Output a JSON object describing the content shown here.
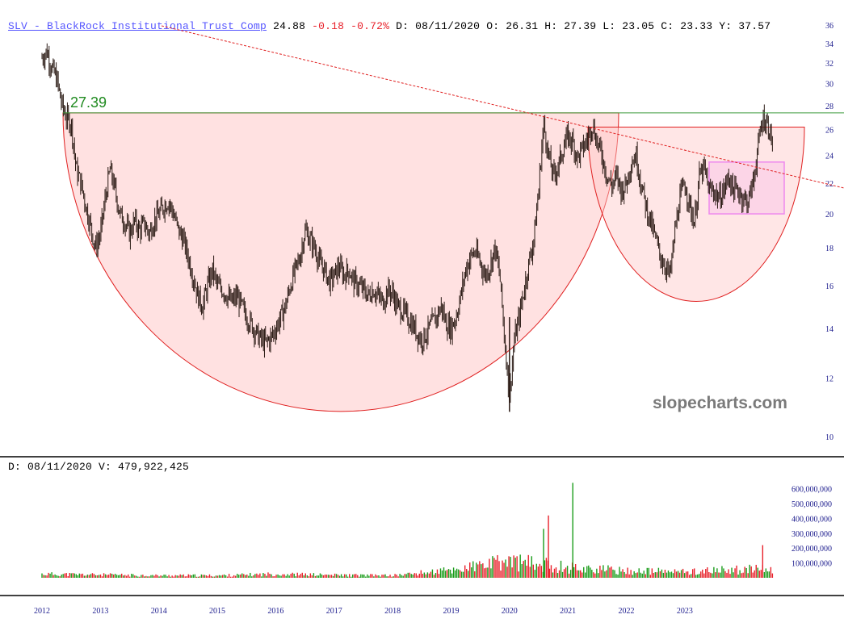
{
  "header": {
    "ticker_name": "SLV - BlackRock Institutional Trust Comp",
    "last": "24.88",
    "change": "-0.18",
    "change_pct": "-0.72%",
    "ohlc_text": "D: 08/11/2020 O: 26.31 H: 27.39 L: 23.05 C: 23.33 Y: 37.57"
  },
  "volume_header": "D: 08/11/2020 V: 479,922,425",
  "watermark": "slopecharts.com",
  "annotation": {
    "label": "27.39",
    "level": 27.39
  },
  "colors": {
    "up": "#1a9c1a",
    "down": "#e8202a",
    "candle": "#2a1a14",
    "bowl_fill": "#ffc8c8",
    "bowl_stroke": "#e02020",
    "resistance": "#3a9a3a",
    "trend": "#e02020",
    "box": "#ee88ee",
    "axis": "#1a1a8c",
    "annotation": "#1f8a1f",
    "watermark": "#7a7a7a"
  },
  "chart_data": [
    {
      "type": "line",
      "title": "SLV - BlackRock Institutional Trust Comp",
      "ylim": [
        9.5,
        37
      ],
      "yscale": "log",
      "yticks": [
        10,
        12,
        14,
        16,
        18,
        20,
        22,
        24,
        26,
        28,
        30,
        32,
        34,
        36
      ],
      "xticks": [
        "2012",
        "2013",
        "2014",
        "2015",
        "2016",
        "2017",
        "2018",
        "2019",
        "2020",
        "2021",
        "2022",
        "2023"
      ],
      "series": [
        {
          "values": [
            [
              "2012-01",
              32.5
            ],
            [
              "2012-02",
              33.2
            ],
            [
              "2012-03",
              31.5
            ],
            [
              "2012-04",
              30.5
            ],
            [
              "2012-05",
              28.2
            ],
            [
              "2012-06",
              27.0
            ],
            [
              "2012-07",
              26.5
            ],
            [
              "2012-08",
              23.0
            ],
            [
              "2012-09",
              22.0
            ],
            [
              "2012-10",
              20.5
            ],
            [
              "2012-11",
              19.2
            ],
            [
              "2012-12",
              18.0
            ],
            [
              "2013-01",
              18.8
            ],
            [
              "2013-02",
              21.0
            ],
            [
              "2013-03",
              23.0
            ],
            [
              "2013-04",
              21.5
            ],
            [
              "2013-05",
              20.0
            ],
            [
              "2013-06",
              19.5
            ],
            [
              "2013-07",
              18.8
            ],
            [
              "2013-08",
              19.6
            ],
            [
              "2013-09",
              19.0
            ],
            [
              "2013-10",
              19.4
            ],
            [
              "2013-11",
              18.8
            ],
            [
              "2013-12",
              19.6
            ],
            [
              "2014-01",
              20.0
            ],
            [
              "2014-02",
              20.5
            ],
            [
              "2014-03",
              20.8
            ],
            [
              "2014-04",
              20.0
            ],
            [
              "2014-05",
              19.0
            ],
            [
              "2014-06",
              18.5
            ],
            [
              "2014-07",
              17.5
            ],
            [
              "2014-08",
              16.5
            ],
            [
              "2014-09",
              15.5
            ],
            [
              "2014-10",
              15.0
            ],
            [
              "2014-11",
              16.0
            ],
            [
              "2014-12",
              16.8
            ],
            [
              "2015-01",
              16.0
            ],
            [
              "2015-02",
              15.8
            ],
            [
              "2015-03",
              15.5
            ],
            [
              "2015-04",
              15.2
            ],
            [
              "2015-05",
              15.5
            ],
            [
              "2015-06",
              15.0
            ],
            [
              "2015-07",
              14.5
            ],
            [
              "2015-08",
              14.2
            ],
            [
              "2015-09",
              13.8
            ],
            [
              "2015-10",
              13.5
            ],
            [
              "2015-11",
              13.4
            ],
            [
              "2015-12",
              13.6
            ],
            [
              "2016-01",
              14.0
            ],
            [
              "2016-02",
              14.5
            ],
            [
              "2016-03",
              15.0
            ],
            [
              "2016-04",
              16.0
            ],
            [
              "2016-05",
              16.8
            ],
            [
              "2016-06",
              17.5
            ],
            [
              "2016-07",
              19.0
            ],
            [
              "2016-08",
              18.5
            ],
            [
              "2016-09",
              18.0
            ],
            [
              "2016-10",
              17.2
            ],
            [
              "2016-11",
              16.8
            ],
            [
              "2016-12",
              16.2
            ],
            [
              "2017-01",
              16.5
            ],
            [
              "2017-02",
              17.0
            ],
            [
              "2017-03",
              16.5
            ],
            [
              "2017-04",
              16.8
            ],
            [
              "2017-05",
              16.2
            ],
            [
              "2017-06",
              16.0
            ],
            [
              "2017-07",
              15.8
            ],
            [
              "2017-08",
              15.5
            ],
            [
              "2017-09",
              15.8
            ],
            [
              "2017-10",
              15.5
            ],
            [
              "2017-11",
              15.2
            ],
            [
              "2017-12",
              15.8
            ],
            [
              "2018-01",
              15.6
            ],
            [
              "2018-02",
              15.0
            ],
            [
              "2018-03",
              14.8
            ],
            [
              "2018-04",
              14.5
            ],
            [
              "2018-05",
              14.2
            ],
            [
              "2018-06",
              13.8
            ],
            [
              "2018-07",
              13.5
            ],
            [
              "2018-08",
              13.8
            ],
            [
              "2018-09",
              14.2
            ],
            [
              "2018-10",
              14.5
            ],
            [
              "2018-11",
              15.0
            ],
            [
              "2018-12",
              14.2
            ],
            [
              "2019-01",
              14.0
            ],
            [
              "2019-02",
              14.5
            ],
            [
              "2019-03",
              15.5
            ],
            [
              "2019-04",
              16.8
            ],
            [
              "2019-05",
              17.5
            ],
            [
              "2019-06",
              17.8
            ],
            [
              "2019-07",
              17.2
            ],
            [
              "2019-08",
              16.5
            ],
            [
              "2019-09",
              17.0
            ],
            [
              "2019-10",
              18.0
            ],
            [
              "2019-11",
              16.5
            ],
            [
              "2019-12",
              13.5
            ],
            [
              "2020-01",
              11.3
            ],
            [
              "2020-02",
              13.5
            ],
            [
              "2020-03",
              14.5
            ],
            [
              "2020-04",
              15.8
            ],
            [
              "2020-05",
              17.2
            ],
            [
              "2020-06",
              18.5
            ],
            [
              "2020-07",
              21.5
            ],
            [
              "2020-08",
              26.5
            ],
            [
              "2020-09",
              24.0
            ],
            [
              "2020-10",
              22.5
            ],
            [
              "2020-11",
              23.2
            ],
            [
              "2020-12",
              24.5
            ],
            [
              "2021-01",
              25.5
            ],
            [
              "2021-02",
              25.0
            ],
            [
              "2021-03",
              23.8
            ],
            [
              "2021-04",
              24.5
            ],
            [
              "2021-05",
              25.2
            ],
            [
              "2021-06",
              26.5
            ],
            [
              "2021-07",
              25.0
            ],
            [
              "2021-08",
              24.0
            ],
            [
              "2021-09",
              22.5
            ],
            [
              "2021-10",
              21.8
            ],
            [
              "2021-11",
              22.5
            ],
            [
              "2021-12",
              21.5
            ],
            [
              "2022-01",
              22.0
            ],
            [
              "2022-02",
              23.5
            ],
            [
              "2022-03",
              24.0
            ],
            [
              "2022-04",
              22.0
            ],
            [
              "2022-05",
              20.5
            ],
            [
              "2022-06",
              19.5
            ],
            [
              "2022-07",
              18.5
            ],
            [
              "2022-08",
              17.5
            ],
            [
              "2022-09",
              17.0
            ],
            [
              "2022-10",
              16.5
            ],
            [
              "2022-11",
              19.0
            ],
            [
              "2022-12",
              21.0
            ],
            [
              "2023-01",
              22.0
            ],
            [
              "2023-02",
              20.5
            ],
            [
              "2023-03",
              19.5
            ],
            [
              "2023-04",
              22.5
            ],
            [
              "2023-05",
              23.0
            ],
            [
              "2023-06",
              21.5
            ],
            [
              "2023-07",
              21.5
            ],
            [
              "2023-08",
              21.0
            ],
            [
              "2023-09",
              21.5
            ],
            [
              "2023-10",
              22.5
            ],
            [
              "2023-11",
              21.5
            ],
            [
              "2023-12",
              21.5
            ],
            [
              "2024-01",
              21.0
            ],
            [
              "2024-02",
              20.8
            ],
            [
              "2024-03",
              22.0
            ],
            [
              "2024-04",
              24.5
            ],
            [
              "2024-05",
              27.0
            ],
            [
              "2024-06",
              26.5
            ],
            [
              "2024-07",
              25.0
            ]
          ]
        }
      ],
      "resistance": 27.39
    },
    {
      "type": "bar",
      "title": "Volume",
      "ylim": [
        0,
        620000000
      ],
      "yticks": [
        100000000,
        200000000,
        300000000,
        400000000,
        500000000,
        600000000
      ],
      "ytick_labels": [
        "100,000,000",
        "200,000,000",
        "300,000,000",
        "400,000,000",
        "500,000,000",
        "600,000,000"
      ],
      "series": [
        {
          "values": [
            [
              "2012",
              25000000
            ],
            [
              "2013",
              20000000
            ],
            [
              "2014",
              15000000
            ],
            [
              "2015",
              15000000
            ],
            [
              "2016",
              25000000
            ],
            [
              "2017",
              18000000
            ],
            [
              "2018",
              15000000
            ],
            [
              "2019",
              50000000
            ],
            [
              "2020",
              110000000
            ],
            [
              "2020-08",
              330000000
            ],
            [
              "2020-09",
              420000000
            ],
            [
              "2021-02",
              640000000
            ],
            [
              "2021",
              70000000
            ],
            [
              "2022",
              45000000
            ],
            [
              "2023",
              40000000
            ],
            [
              "2024",
              55000000
            ],
            [
              "2024-05",
              220000000
            ]
          ]
        }
      ]
    }
  ]
}
